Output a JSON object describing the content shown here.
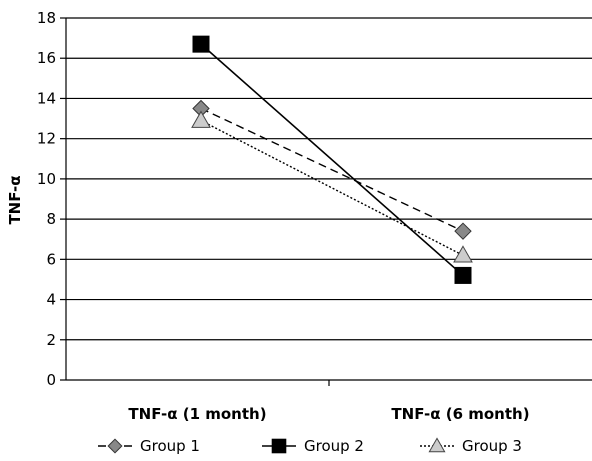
{
  "chart_data": {
    "type": "line",
    "categories": [
      "TNF-α (1 month)",
      "TNF-α (6 month)"
    ],
    "ylabel": "TNF-α",
    "ylim": [
      0,
      18
    ],
    "y_ticks": [
      "0",
      "2",
      "4",
      "6",
      "8",
      "10",
      "12",
      "14",
      "16",
      "18"
    ],
    "grid": true,
    "legend_position": "bottom",
    "series": [
      {
        "name": "Group 1",
        "values": [
          13.5,
          7.4
        ],
        "marker": "diamond",
        "line_style": "dashed",
        "color": "#888888"
      },
      {
        "name": "Group 2",
        "values": [
          16.7,
          5.2
        ],
        "marker": "square",
        "line_style": "solid",
        "color": "#000000"
      },
      {
        "name": "Group 3",
        "values": [
          12.9,
          6.2
        ],
        "marker": "triangle",
        "line_style": "dotted",
        "color": "#cccccc"
      }
    ]
  }
}
